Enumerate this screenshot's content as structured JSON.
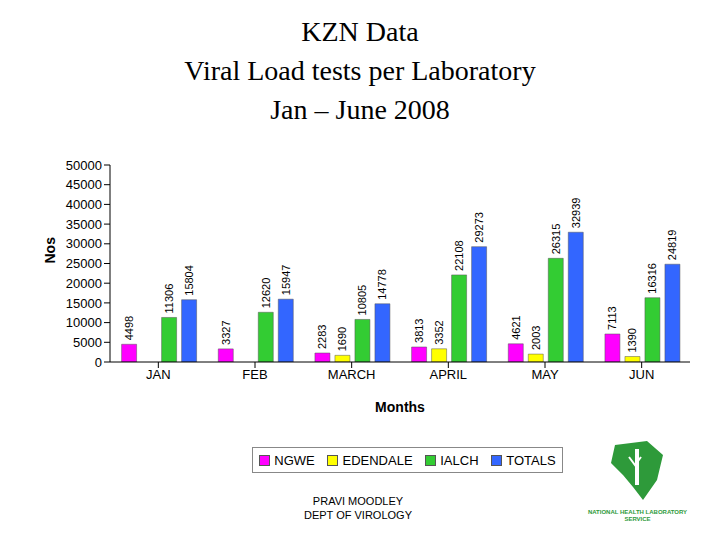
{
  "chart_data": {
    "type": "bar",
    "title": "KZN Data\nViral Load tests per Laboratory\nJan – June 2008",
    "x_label": "Months",
    "y_label": "Nos",
    "categories": [
      "JAN",
      "FEB",
      "MARCH",
      "APRIL",
      "MAY",
      "JUN"
    ],
    "series": [
      {
        "name": "NGWE",
        "color": "#ff00ff",
        "values": [
          4498,
          3327,
          2283,
          3813,
          4621,
          7113
        ]
      },
      {
        "name": "EDENDALE",
        "color": "#ffff00",
        "values": [
          null,
          null,
          1690,
          3352,
          2003,
          1390
        ]
      },
      {
        "name": "IALCH",
        "color": "#33cc33",
        "values": [
          11306,
          12620,
          10805,
          22108,
          26315,
          16316
        ]
      },
      {
        "name": "TOTALS",
        "color": "#3366ff",
        "values": [
          15804,
          15947,
          14778,
          29273,
          32939,
          24819
        ]
      }
    ],
    "ylim": [
      0,
      50000
    ],
    "yticks": [
      0,
      5000,
      10000,
      15000,
      20000,
      25000,
      30000,
      35000,
      40000,
      45000,
      50000
    ],
    "grid": false,
    "legend": "bottom",
    "data_labels": true
  },
  "footer": {
    "lines": [
      "PRAVI MOODLEY",
      "DEPT OF VIROLOGY"
    ],
    "logo_text": "NATIONAL HEALTH LABORATORY SERVICE"
  }
}
